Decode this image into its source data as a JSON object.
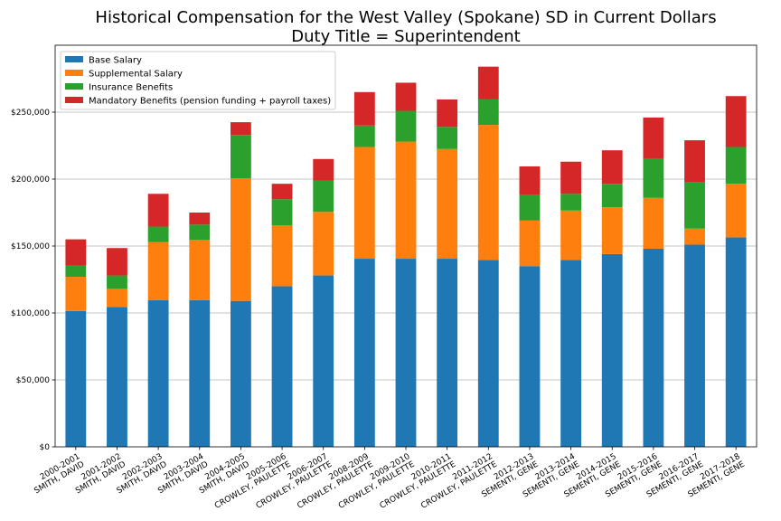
{
  "chart_data": {
    "type": "bar",
    "stacked": true,
    "title": "Historical Compensation for the West Valley (Spokane) SD in Current Dollars",
    "subtitle": "Duty Title = Superintendent",
    "xlabel": "",
    "ylabel": "",
    "ylim": [
      0,
      300000
    ],
    "yticks": [
      0,
      50000,
      100000,
      150000,
      200000,
      250000
    ],
    "ytick_labels": [
      "$0",
      "$50,000",
      "$100,000",
      "$150,000",
      "$200,000",
      "$250,000"
    ],
    "grid": "horizontal",
    "legend_position": "top-left",
    "categories": [
      [
        "2000-2001",
        "SMITH, DAVID"
      ],
      [
        "2001-2002",
        "SMITH, DAVID"
      ],
      [
        "2002-2003",
        "SMITH, DAVID"
      ],
      [
        "2003-2004",
        "SMITH, DAVID"
      ],
      [
        "2004-2005",
        "SMITH, DAVID"
      ],
      [
        "2005-2006",
        "CROWLEY, PAULETTE"
      ],
      [
        "2006-2007",
        "CROWLEY, PAULETTE"
      ],
      [
        "2008-2009",
        "CROWLEY, PAULETTE"
      ],
      [
        "2009-2010",
        "CROWLEY, PAULETTE"
      ],
      [
        "2010-2011",
        "CROWLEY, PAULETTE"
      ],
      [
        "2011-2012",
        "CROWLEY, PAULETTE"
      ],
      [
        "2012-2013",
        "SEMENTI, GENE"
      ],
      [
        "2013-2014",
        "SEMENTI, GENE"
      ],
      [
        "2014-2015",
        "SEMENTI, GENE"
      ],
      [
        "2015-2016",
        "SEMENTI, GENE"
      ],
      [
        "2016-2017",
        "SEMENTI, GENE"
      ],
      [
        "2017-2018",
        "SEMENTI, GENE"
      ]
    ],
    "series": [
      {
        "name": "Base Salary",
        "color": "#1f77b4",
        "values": [
          101500,
          104500,
          109500,
          109500,
          109000,
          120000,
          128000,
          140500,
          140500,
          140500,
          139500,
          135000,
          139500,
          144000,
          148000,
          151000,
          156500
        ]
      },
      {
        "name": "Supplemental Salary",
        "color": "#ff7f0e",
        "values": [
          25500,
          13500,
          43500,
          45000,
          91500,
          45500,
          47500,
          83500,
          87500,
          82000,
          101000,
          34000,
          37000,
          35000,
          38000,
          12000,
          40000
        ]
      },
      {
        "name": "Insurance Benefits",
        "color": "#2ca02c",
        "values": [
          8500,
          10000,
          11500,
          11500,
          32500,
          19500,
          23500,
          16000,
          23000,
          16500,
          19000,
          19500,
          12500,
          17500,
          29000,
          34500,
          27500
        ]
      },
      {
        "name": "Mandatory Benefits (pension funding + payroll taxes)",
        "color": "#d62728",
        "values": [
          19500,
          20500,
          24500,
          9000,
          9500,
          11500,
          16000,
          25000,
          21000,
          20500,
          24500,
          21000,
          24000,
          25000,
          31000,
          31500,
          38000
        ]
      }
    ]
  }
}
